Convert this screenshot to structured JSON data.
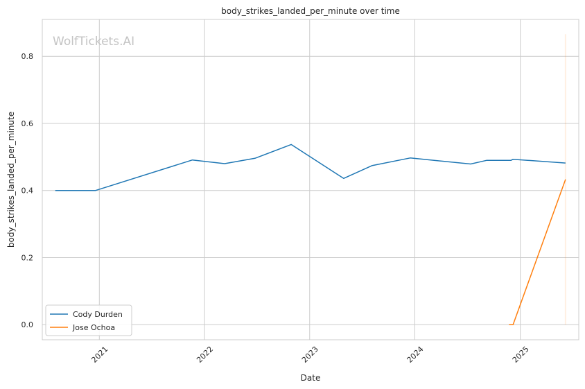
{
  "chart_data": {
    "type": "line",
    "title": "body_strikes_landed_per_minute over time",
    "xlabel": "Date",
    "ylabel": "body_strikes_landed_per_minute",
    "watermark": "WolfTickets.AI",
    "x_ticks": [
      "2021",
      "2022",
      "2023",
      "2024",
      "2025"
    ],
    "y_ticks": [
      "0.0",
      "0.2",
      "0.4",
      "0.6",
      "0.8"
    ],
    "xlim": [
      "2020-06-17",
      "2025-07-23"
    ],
    "ylim": [
      -0.045,
      0.91
    ],
    "grid": true,
    "legend_position": "lower-left",
    "series": [
      {
        "name": "Cody Durden",
        "color": "#1f77b4",
        "points": [
          {
            "x": "2020-08-01",
            "y": 0.4
          },
          {
            "x": "2020-12-19",
            "y": 0.4
          },
          {
            "x": "2021-11-20",
            "y": 0.491
          },
          {
            "x": "2022-03-12",
            "y": 0.48
          },
          {
            "x": "2022-06-25",
            "y": 0.496
          },
          {
            "x": "2022-10-29",
            "y": 0.537
          },
          {
            "x": "2023-04-29",
            "y": 0.436
          },
          {
            "x": "2023-08-05",
            "y": 0.474
          },
          {
            "x": "2023-12-16",
            "y": 0.497
          },
          {
            "x": "2024-07-13",
            "y": 0.479
          },
          {
            "x": "2024-09-07",
            "y": 0.49
          },
          {
            "x": "2024-11-30",
            "y": 0.49
          },
          {
            "x": "2024-12-07",
            "y": 0.493
          },
          {
            "x": "2025-06-07",
            "y": 0.482
          }
        ]
      },
      {
        "name": "Jose Ochoa",
        "color": "#ff7f0e",
        "points": [
          {
            "x": "2024-11-23",
            "y": 0.0
          },
          {
            "x": "2024-12-07",
            "y": 0.0
          },
          {
            "x": "2025-06-07",
            "y": 0.433
          }
        ],
        "band": {
          "x": "2025-06-07",
          "y_low": 0.0,
          "y_high": 0.866
        }
      }
    ]
  }
}
